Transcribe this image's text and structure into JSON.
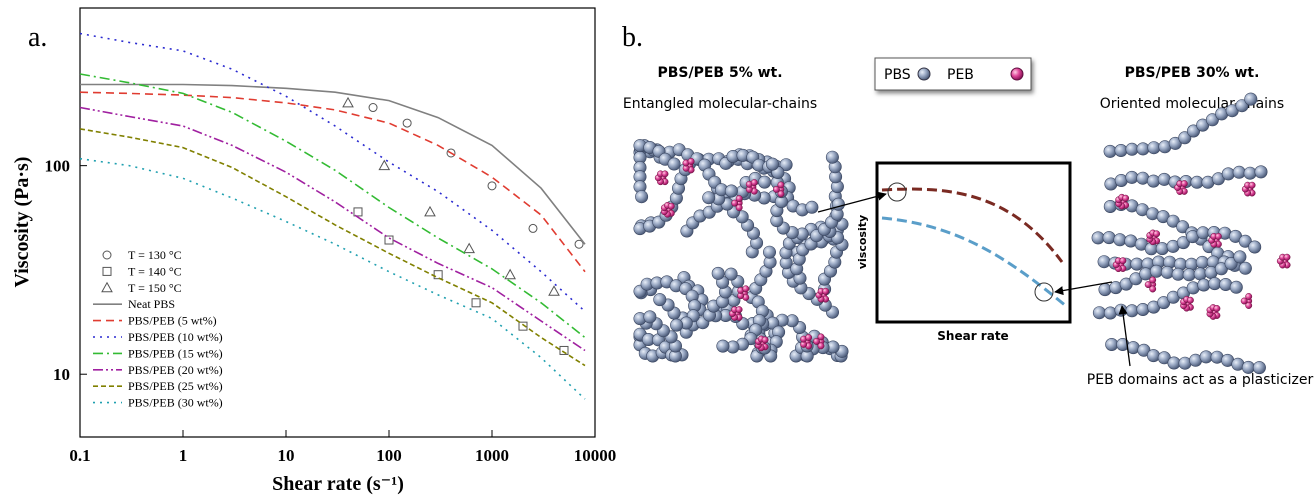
{
  "panel_a_label": "a.",
  "chart_data": {
    "type": "line",
    "log_x": true,
    "log_y": true,
    "x_label": "Shear rate (s⁻¹)",
    "y_label": "Viscosity (Pa·s)",
    "xlim": [
      0.1,
      10000
    ],
    "ylim": [
      5,
      570
    ],
    "xticks": [
      0.1,
      1,
      10,
      100,
      1000,
      10000
    ],
    "yticks": [
      10,
      100
    ],
    "legend": "lower left",
    "x": [
      0.1,
      0.3,
      1,
      3,
      10,
      30,
      100,
      300,
      1000,
      3000,
      8000
    ],
    "series": [
      {
        "name": "T = 130 °C",
        "marker": "circle",
        "color": "#555555",
        "x": [
          70,
          150,
          400,
          1000,
          2500,
          7000
        ],
        "values": [
          190,
          160,
          115,
          80,
          50,
          42
        ]
      },
      {
        "name": "T = 140 °C",
        "marker": "square",
        "color": "#555555",
        "x": [
          50,
          100,
          300,
          700,
          2000,
          5000
        ],
        "values": [
          60,
          44,
          30,
          22,
          17,
          13
        ]
      },
      {
        "name": "T = 150 °C",
        "marker": "triangle",
        "color": "#555555",
        "x": [
          40,
          90,
          250,
          600,
          1500,
          4000
        ],
        "values": [
          200,
          100,
          60,
          40,
          30,
          25
        ]
      },
      {
        "name": "Neat PBS",
        "dash": "solid",
        "color": "#808080",
        "values": [
          245,
          245,
          245,
          242,
          235,
          225,
          205,
          170,
          125,
          78,
          42
        ]
      },
      {
        "name": "PBS/PEB (5 wt%)",
        "dash": "dash",
        "color": "#e03c31",
        "values": [
          225,
          222,
          218,
          212,
          200,
          185,
          160,
          125,
          88,
          58,
          31
        ]
      },
      {
        "name": "PBS/PEB (10 wt%)",
        "dash": "dot",
        "color": "#2a2ad0",
        "values": [
          430,
          390,
          355,
          290,
          215,
          155,
          104,
          75,
          49,
          31,
          20
        ]
      },
      {
        "name": "PBS/PEB (15 wt%)",
        "dash": "dashdot",
        "color": "#33bb33",
        "values": [
          275,
          250,
          222,
          180,
          131,
          95,
          63,
          45,
          32,
          22,
          15
        ]
      },
      {
        "name": "PBS/PEB (20 wt%)",
        "dash": "dashdotdot",
        "color": "#a020a0",
        "values": [
          190,
          172,
          155,
          125,
          93,
          67,
          45,
          34,
          26,
          18,
          13
        ]
      },
      {
        "name": "PBS/PEB (25 wt%)",
        "dash": "shortdash",
        "color": "#808000",
        "values": [
          150,
          137,
          122,
          98,
          71,
          52,
          38,
          29,
          22,
          15,
          11
        ]
      },
      {
        "name": "PBS/PEB (30 wt%)",
        "dash": "dot",
        "color": "#20a0b0",
        "values": [
          108,
          100,
          87,
          70,
          54,
          42,
          31,
          24,
          18.5,
          12,
          7.6
        ]
      }
    ]
  },
  "diagram": {
    "panel_label": "b.",
    "left_title": "PBS/PEB 5% wt.",
    "left_subtitle": "Entangled molecular-chains",
    "legend": {
      "items": [
        "PBS",
        "PEB"
      ]
    },
    "right_title": "PBS/PEB 30% wt.",
    "right_subtitle": "Oriented molecular-chains",
    "inset": {
      "y_label": "viscosity",
      "x_label": "Shear rate"
    },
    "annotation": "PEB domains act as a plasticizer"
  }
}
